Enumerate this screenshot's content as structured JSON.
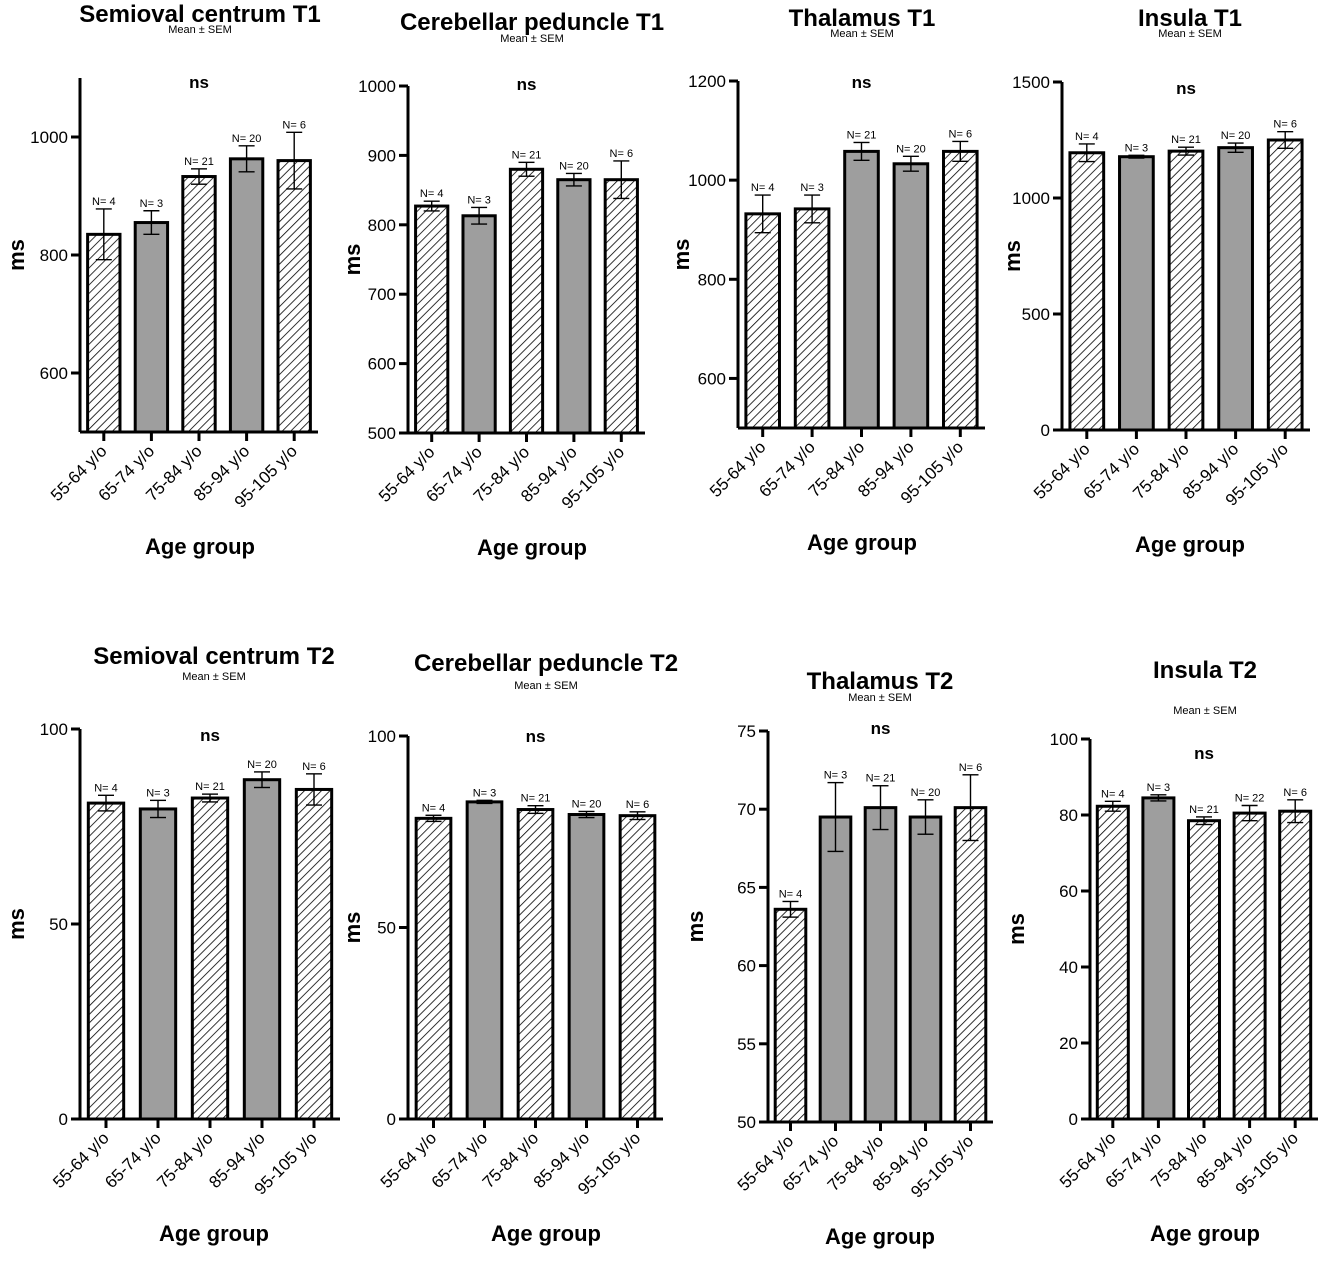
{
  "chart_data": [
    {
      "type": "bar",
      "title": "Semioval centrum T1",
      "subtitle": "Mean ± SEM",
      "annotation": "ns",
      "xlabel": "Age group",
      "ylabel": "ms",
      "ylim": [
        500,
        1100
      ],
      "yticks": [
        600,
        800,
        1000
      ],
      "categories": [
        "55-64 y/o",
        "65-74 y/o",
        "75-84 y/o",
        "85-94 y/o",
        "95-105 y/o"
      ],
      "values": [
        835,
        855,
        933,
        963,
        960
      ],
      "errors": [
        43,
        20,
        13,
        22,
        48
      ],
      "n_labels": [
        "N= 4",
        "N= 3",
        "N= 21",
        "N= 20",
        "N= 6"
      ],
      "patterns": [
        "hatch",
        "solid",
        "hatch",
        "solid",
        "hatch"
      ]
    },
    {
      "type": "bar",
      "title": "Cerebellar peduncle T1",
      "subtitle": "Mean ± SEM",
      "annotation": "ns",
      "xlabel": "Age group",
      "ylabel": "ms",
      "ylim": [
        500,
        1000
      ],
      "yticks": [
        500,
        600,
        700,
        800,
        900,
        1000
      ],
      "categories": [
        "55-64 y/o",
        "65-74 y/o",
        "75-84 y/o",
        "85-94 y/o",
        "95-105 y/o"
      ],
      "values": [
        827,
        813,
        880,
        865,
        865
      ],
      "errors": [
        7,
        12,
        10,
        9,
        27
      ],
      "n_labels": [
        "N= 4",
        "N= 3",
        "N= 21",
        "N= 20",
        "N= 6"
      ],
      "patterns": [
        "hatch",
        "solid",
        "hatch",
        "solid",
        "hatch"
      ]
    },
    {
      "type": "bar",
      "title": "Thalamus T1",
      "subtitle": "Mean ± SEM",
      "annotation": "ns",
      "xlabel": "Age group",
      "ylabel": "ms",
      "ylim": [
        500,
        1200
      ],
      "yticks": [
        600,
        800,
        1000,
        1200
      ],
      "categories": [
        "55-64 y/o",
        "65-74 y/o",
        "75-84 y/o",
        "85-94 y/o",
        "95-105 y/o"
      ],
      "values": [
        932,
        942,
        1058,
        1033,
        1058
      ],
      "errors": [
        38,
        28,
        18,
        15,
        20
      ],
      "n_labels": [
        "N= 4",
        "N= 3",
        "N= 21",
        "N= 20",
        "N= 6"
      ],
      "patterns": [
        "hatch",
        "hatch",
        "solid",
        "solid",
        "hatch"
      ]
    },
    {
      "type": "bar",
      "title": "Insula T1",
      "subtitle": "Mean ± SEM",
      "annotation": "ns",
      "xlabel": "Age group",
      "ylabel": "ms",
      "ylim": [
        0,
        1500
      ],
      "yticks": [
        0,
        500,
        1000,
        1500
      ],
      "categories": [
        "55-64 y/o",
        "65-74 y/o",
        "75-84 y/o",
        "85-94 y/o",
        "95-105 y/o"
      ],
      "values": [
        1195,
        1178,
        1202,
        1217,
        1250
      ],
      "errors": [
        38,
        6,
        17,
        20,
        36
      ],
      "n_labels": [
        "N= 4",
        "N= 3",
        "N= 21",
        "N= 20",
        "N= 6"
      ],
      "patterns": [
        "hatch",
        "solid",
        "hatch",
        "solid",
        "hatch"
      ]
    },
    {
      "type": "bar",
      "title": "Semioval centrum T2",
      "subtitle": "Mean ± SEM",
      "annotation": "ns",
      "xlabel": "Age group",
      "ylabel": "ms",
      "ylim": [
        0,
        100
      ],
      "yticks": [
        0,
        50,
        100
      ],
      "categories": [
        "55-64 y/o",
        "65-74 y/o",
        "75-84 y/o",
        "85-94 y/o",
        "95-105 y/o"
      ],
      "values": [
        81,
        79.5,
        82.3,
        87,
        84.5
      ],
      "errors": [
        2,
        2.2,
        1,
        2,
        4
      ],
      "n_labels": [
        "N= 4",
        "N= 3",
        "N= 21",
        "N= 20",
        "N= 6"
      ],
      "patterns": [
        "hatch",
        "solid",
        "hatch",
        "solid",
        "hatch"
      ]
    },
    {
      "type": "bar",
      "title": "Cerebellar peduncle T2",
      "subtitle": "Mean ± SEM",
      "annotation": "ns",
      "xlabel": "Age group",
      "ylabel": "ms",
      "ylim": [
        0,
        100
      ],
      "yticks": [
        0,
        50,
        100
      ],
      "categories": [
        "55-64 y/o",
        "65-74 y/o",
        "75-84 y/o",
        "85-94 y/o",
        "95-105 y/o"
      ],
      "values": [
        78.5,
        82.8,
        80.8,
        79.5,
        79.2
      ],
      "errors": [
        0.8,
        0.4,
        1,
        0.8,
        1
      ],
      "n_labels": [
        "N= 4",
        "N= 3",
        "N= 21",
        "N= 20",
        "N= 6"
      ],
      "patterns": [
        "hatch",
        "solid",
        "hatch",
        "solid",
        "hatch"
      ]
    },
    {
      "type": "bar",
      "title": "Thalamus T2",
      "subtitle": "Mean ± SEM",
      "annotation": "ns",
      "xlabel": "Age group",
      "ylabel": "ms",
      "ylim": [
        50,
        75
      ],
      "yticks": [
        50,
        55,
        60,
        65,
        70,
        75
      ],
      "categories": [
        "55-64 y/o",
        "65-74 y/o",
        "75-84 y/o",
        "85-94 y/o",
        "95-105 y/o"
      ],
      "values": [
        63.6,
        69.5,
        70.1,
        69.5,
        70.1
      ],
      "errors": [
        0.5,
        2.2,
        1.4,
        1.1,
        2.1
      ],
      "n_labels": [
        "N= 4",
        "N= 3",
        "N= 21",
        "N= 20",
        "N= 6"
      ],
      "patterns": [
        "hatch",
        "solid",
        "solid",
        "solid",
        "hatch"
      ]
    },
    {
      "type": "bar",
      "title": "Insula T2",
      "subtitle": "Mean ± SEM",
      "annotation": "ns",
      "xlabel": "Age group",
      "ylabel": "ms",
      "ylim": [
        0,
        100
      ],
      "yticks": [
        0,
        20,
        40,
        60,
        80,
        100
      ],
      "categories": [
        "55-64 y/o",
        "65-74 y/o",
        "75-84 y/o",
        "85-94 y/o",
        "95-105 y/o"
      ],
      "values": [
        82.3,
        84.5,
        78.5,
        80.5,
        81
      ],
      "errors": [
        1.3,
        0.8,
        1,
        2,
        3
      ],
      "n_labels": [
        "N= 4",
        "N= 3",
        "N= 21",
        "N= 22",
        "N= 6"
      ],
      "patterns": [
        "hatch",
        "solid",
        "hatch",
        "hatch",
        "hatch"
      ]
    }
  ],
  "colors": {
    "bar_fill": "#9e9e9e",
    "hatch_stroke": "#000000",
    "axis": "#000000"
  }
}
